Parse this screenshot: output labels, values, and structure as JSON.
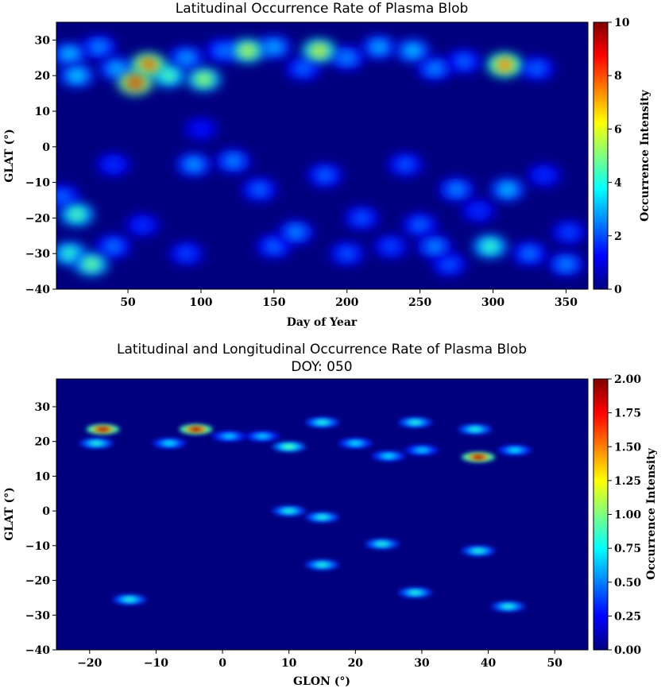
{
  "colormap": [
    "#00007f",
    "#0000ff",
    "#007fff",
    "#00ffff",
    "#7fff7f",
    "#ffff00",
    "#ff7f00",
    "#ff0000",
    "#7f0000"
  ],
  "chart_data": [
    {
      "type": "heatmap",
      "title": "Latitudinal Occurrence Rate of Plasma Blob",
      "xlabel": "Day of Year",
      "ylabel": "GLAT (°)",
      "colorbar_label": "Occurrence Intensity",
      "xlim": [
        1,
        365
      ],
      "ylim": [
        -40,
        35
      ],
      "clim": [
        0,
        10
      ],
      "xticks": [
        50,
        100,
        150,
        200,
        250,
        300,
        350
      ],
      "yticks": [
        -40,
        -30,
        -20,
        -10,
        0,
        10,
        20,
        30
      ],
      "cticks": [
        "0",
        "2",
        "4",
        "6",
        "8",
        "10"
      ],
      "blobs": [
        {
          "x": 10,
          "y": 26,
          "v": 3.6
        },
        {
          "x": 15,
          "y": 20,
          "v": 3.8
        },
        {
          "x": 30,
          "y": 28,
          "v": 3.0
        },
        {
          "x": 42,
          "y": 22,
          "v": 3.4
        },
        {
          "x": 55,
          "y": 18,
          "v": 9.8
        },
        {
          "x": 64,
          "y": 23,
          "v": 9.2
        },
        {
          "x": 78,
          "y": 20,
          "v": 5.2
        },
        {
          "x": 90,
          "y": 25,
          "v": 3.2
        },
        {
          "x": 102,
          "y": 19,
          "v": 6.0
        },
        {
          "x": 115,
          "y": 27,
          "v": 2.8
        },
        {
          "x": 132,
          "y": 27,
          "v": 6.5
        },
        {
          "x": 150,
          "y": 28,
          "v": 3.4
        },
        {
          "x": 170,
          "y": 22,
          "v": 2.6
        },
        {
          "x": 181,
          "y": 27,
          "v": 6.8
        },
        {
          "x": 200,
          "y": 25,
          "v": 3.0
        },
        {
          "x": 222,
          "y": 28,
          "v": 3.4
        },
        {
          "x": 245,
          "y": 27,
          "v": 3.6
        },
        {
          "x": 260,
          "y": 22,
          "v": 3.0
        },
        {
          "x": 280,
          "y": 24,
          "v": 2.6
        },
        {
          "x": 308,
          "y": 23,
          "v": 8.6
        },
        {
          "x": 330,
          "y": 22,
          "v": 2.6
        },
        {
          "x": 100,
          "y": 5,
          "v": 1.6
        },
        {
          "x": 40,
          "y": -5,
          "v": 2.0
        },
        {
          "x": 95,
          "y": -5,
          "v": 3.2
        },
        {
          "x": 122,
          "y": -4,
          "v": 3.0
        },
        {
          "x": 185,
          "y": -8,
          "v": 2.6
        },
        {
          "x": 240,
          "y": -5,
          "v": 2.4
        },
        {
          "x": 275,
          "y": -12,
          "v": 3.0
        },
        {
          "x": 310,
          "y": -12,
          "v": 3.6
        },
        {
          "x": 335,
          "y": -8,
          "v": 2.0
        },
        {
          "x": 5,
          "y": -14,
          "v": 2.6
        },
        {
          "x": 15,
          "y": -19,
          "v": 5.2
        },
        {
          "x": 60,
          "y": -22,
          "v": 2.0
        },
        {
          "x": 140,
          "y": -12,
          "v": 2.6
        },
        {
          "x": 210,
          "y": -20,
          "v": 2.4
        },
        {
          "x": 250,
          "y": -22,
          "v": 2.6
        },
        {
          "x": 290,
          "y": -18,
          "v": 2.0
        },
        {
          "x": 10,
          "y": -30,
          "v": 4.8
        },
        {
          "x": 25,
          "y": -33,
          "v": 5.5
        },
        {
          "x": 40,
          "y": -28,
          "v": 2.8
        },
        {
          "x": 90,
          "y": -30,
          "v": 2.2
        },
        {
          "x": 150,
          "y": -28,
          "v": 2.6
        },
        {
          "x": 165,
          "y": -24,
          "v": 3.0
        },
        {
          "x": 200,
          "y": -30,
          "v": 2.4
        },
        {
          "x": 230,
          "y": -28,
          "v": 2.2
        },
        {
          "x": 260,
          "y": -28,
          "v": 3.0
        },
        {
          "x": 270,
          "y": -33,
          "v": 2.4
        },
        {
          "x": 298,
          "y": -28,
          "v": 5.0
        },
        {
          "x": 325,
          "y": -30,
          "v": 2.8
        },
        {
          "x": 350,
          "y": -33,
          "v": 3.0
        },
        {
          "x": 352,
          "y": -24,
          "v": 2.2
        }
      ]
    },
    {
      "type": "heatmap",
      "title": "Latitudinal and Longitudinal Occurrence Rate of Plasma Blob",
      "subtitle": "DOY: 050",
      "xlabel": "GLON (°)",
      "ylabel": "GLAT (°)",
      "colorbar_label": "Occurrence Intensity",
      "xlim": [
        -25,
        55
      ],
      "ylim": [
        -40,
        38
      ],
      "clim": [
        0,
        2
      ],
      "xticks": [
        -20,
        -10,
        0,
        10,
        20,
        30,
        40,
        50
      ],
      "yticks": [
        -40,
        -30,
        -20,
        -10,
        0,
        10,
        20,
        30
      ],
      "cticks": [
        "0.00",
        "0.25",
        "0.50",
        "0.75",
        "1.00",
        "1.25",
        "1.50",
        "1.75",
        "2.00"
      ],
      "blobs": [
        {
          "x": -18,
          "y": 23.5,
          "v": 2.0
        },
        {
          "x": -4,
          "y": 23.5,
          "v": 2.0
        },
        {
          "x": -19,
          "y": 19.5,
          "v": 0.85
        },
        {
          "x": -8,
          "y": 19.5,
          "v": 0.75
        },
        {
          "x": 1,
          "y": 21.5,
          "v": 0.7
        },
        {
          "x": 6,
          "y": 21.5,
          "v": 0.7
        },
        {
          "x": 10,
          "y": 18.5,
          "v": 1.0
        },
        {
          "x": 15,
          "y": 25.5,
          "v": 0.85
        },
        {
          "x": 20,
          "y": 19.5,
          "v": 0.75
        },
        {
          "x": 29,
          "y": 25.5,
          "v": 0.85
        },
        {
          "x": 38,
          "y": 23.5,
          "v": 0.85
        },
        {
          "x": 25,
          "y": 15.8,
          "v": 0.75
        },
        {
          "x": 30,
          "y": 17.5,
          "v": 0.7
        },
        {
          "x": 38.5,
          "y": 15.5,
          "v": 2.0
        },
        {
          "x": 44,
          "y": 17.5,
          "v": 0.75
        },
        {
          "x": 10,
          "y": 0,
          "v": 0.85
        },
        {
          "x": 15,
          "y": -1.8,
          "v": 0.85
        },
        {
          "x": 24,
          "y": -9.5,
          "v": 0.85
        },
        {
          "x": 38.5,
          "y": -11.5,
          "v": 0.85
        },
        {
          "x": 15,
          "y": -15.5,
          "v": 0.85
        },
        {
          "x": 29,
          "y": -23.5,
          "v": 0.85
        },
        {
          "x": -14,
          "y": -25.5,
          "v": 0.85
        },
        {
          "x": 43,
          "y": -27.5,
          "v": 0.85
        }
      ]
    }
  ]
}
